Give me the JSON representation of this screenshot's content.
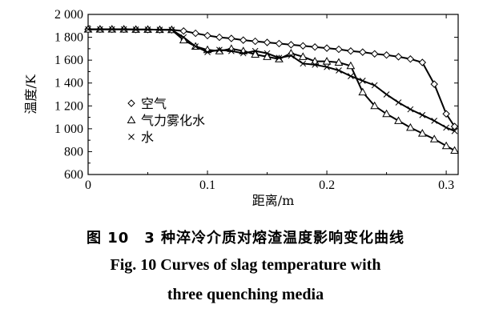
{
  "chart_data": {
    "type": "line",
    "xlabel": "距离/m",
    "ylabel": "温度/K",
    "xlim": [
      0,
      0.31
    ],
    "ylim": [
      600,
      2000
    ],
    "x_ticks": [
      "0",
      "0.1",
      "0.2",
      "0.3"
    ],
    "y_ticks": [
      "600",
      "800",
      "1 000",
      "1 200",
      "1 400",
      "1 600",
      "1 800",
      "2 000"
    ],
    "legend_position": "middle-left",
    "series": [
      {
        "name": "空气",
        "marker": "diamond",
        "x": [
          0.0,
          0.01,
          0.02,
          0.03,
          0.04,
          0.05,
          0.06,
          0.07,
          0.08,
          0.09,
          0.1,
          0.11,
          0.12,
          0.13,
          0.14,
          0.15,
          0.16,
          0.17,
          0.18,
          0.19,
          0.2,
          0.21,
          0.22,
          0.23,
          0.24,
          0.25,
          0.26,
          0.27,
          0.28,
          0.29,
          0.3,
          0.307
        ],
        "y": [
          1870,
          1870,
          1870,
          1870,
          1868,
          1868,
          1866,
          1865,
          1855,
          1835,
          1815,
          1800,
          1790,
          1775,
          1765,
          1755,
          1745,
          1735,
          1725,
          1715,
          1705,
          1695,
          1680,
          1670,
          1655,
          1645,
          1630,
          1610,
          1580,
          1390,
          1130,
          1020
        ]
      },
      {
        "name": "气力雾化水",
        "marker": "triangle",
        "x": [
          0.0,
          0.01,
          0.02,
          0.03,
          0.04,
          0.05,
          0.06,
          0.07,
          0.08,
          0.09,
          0.1,
          0.11,
          0.12,
          0.13,
          0.14,
          0.15,
          0.16,
          0.17,
          0.18,
          0.19,
          0.2,
          0.21,
          0.22,
          0.23,
          0.24,
          0.25,
          0.26,
          0.27,
          0.28,
          0.29,
          0.3,
          0.307
        ],
        "y": [
          1870,
          1870,
          1870,
          1870,
          1868,
          1868,
          1866,
          1865,
          1775,
          1720,
          1690,
          1680,
          1700,
          1680,
          1650,
          1630,
          1610,
          1660,
          1630,
          1590,
          1590,
          1580,
          1550,
          1320,
          1200,
          1130,
          1070,
          1010,
          960,
          910,
          850,
          810
        ]
      },
      {
        "name": "水",
        "marker": "cross",
        "x": [
          0.0,
          0.01,
          0.02,
          0.03,
          0.04,
          0.05,
          0.06,
          0.07,
          0.08,
          0.09,
          0.1,
          0.11,
          0.12,
          0.13,
          0.14,
          0.15,
          0.16,
          0.17,
          0.18,
          0.19,
          0.2,
          0.21,
          0.22,
          0.23,
          0.24,
          0.25,
          0.26,
          0.27,
          0.28,
          0.29,
          0.3,
          0.307
        ],
        "y": [
          1870,
          1870,
          1870,
          1870,
          1868,
          1868,
          1866,
          1865,
          1800,
          1720,
          1670,
          1690,
          1680,
          1660,
          1680,
          1660,
          1620,
          1640,
          1570,
          1560,
          1540,
          1510,
          1460,
          1420,
          1380,
          1300,
          1230,
          1170,
          1120,
          1070,
          1010,
          980
        ]
      }
    ]
  },
  "caption": {
    "chinese": "图 10　3 种淬冷介质对熔渣温度影响变化曲线",
    "english_line1": "Fig. 10    Curves of slag temperature with",
    "english_line2": "three quenching media"
  }
}
